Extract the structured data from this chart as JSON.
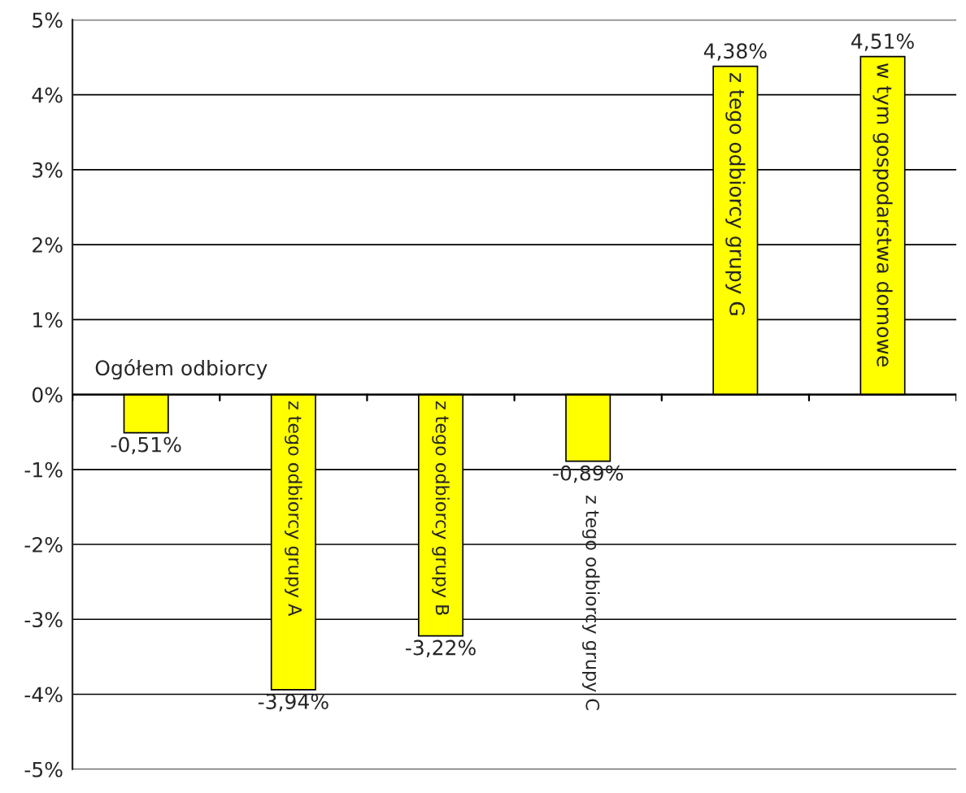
{
  "chart_data": {
    "type": "bar",
    "categories": [
      "Ogółem odbiorcy",
      "z tego odbiorcy grupy A",
      "z tego odbiorcy grupy B",
      "z tego odbiorcy grupy C",
      "z tego odbiorcy grupy G",
      "w tym gospodarstwa domowe"
    ],
    "values": [
      -0.51,
      -3.94,
      -3.22,
      -0.89,
      4.38,
      4.51
    ],
    "value_labels": [
      "-0,51%",
      "-3,94%",
      "-3,22%",
      "-0,89%",
      "4,38%",
      "4,51%"
    ],
    "color": "#ffff00",
    "ylim": [
      -5,
      5
    ],
    "yticks": [
      {
        "value": -5,
        "label": "-5%"
      },
      {
        "value": -4,
        "label": "-4%"
      },
      {
        "value": -3,
        "label": "-3%"
      },
      {
        "value": -2,
        "label": "-2%"
      },
      {
        "value": -1,
        "label": "-1%"
      },
      {
        "value": 0,
        "label": "0%"
      },
      {
        "value": 1,
        "label": "1%"
      },
      {
        "value": 2,
        "label": "2%"
      },
      {
        "value": 3,
        "label": "3%"
      },
      {
        "value": 4,
        "label": "4%"
      },
      {
        "value": 5,
        "label": "5%"
      }
    ],
    "grid": "y",
    "legend": false
  }
}
